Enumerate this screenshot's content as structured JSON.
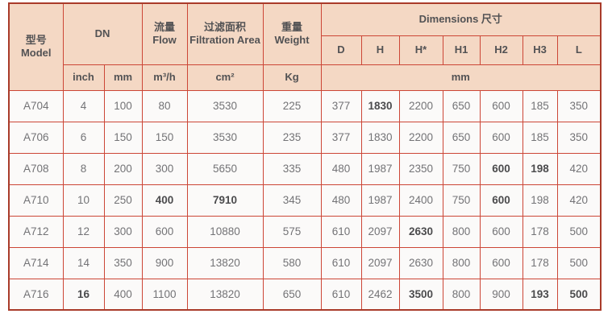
{
  "accent_colors": {
    "header_fill": "#f4d8c4",
    "grid_line": "#cc4636",
    "outer_border": "#a93b2a",
    "data_text": "#737376",
    "header_text": "#525254"
  },
  "table": {
    "header": {
      "model_zh": "型号",
      "model_en": "Model",
      "dn": "DN",
      "flow_zh": "流量",
      "flow_en": "Flow",
      "filtration_zh": "过滤面积",
      "filtration_en": "Filtration Area",
      "weight_zh": "重量",
      "weight_en": "Weight",
      "dimensions": "Dimensions 尺寸",
      "dim_cols": [
        "D",
        "H",
        "H*",
        "H1",
        "H2",
        "H3",
        "L"
      ],
      "unit_inch": "inch",
      "unit_mm": "mm",
      "unit_flow": "m³/h",
      "unit_area": "cm²",
      "unit_weight": "Kg",
      "unit_dims": "mm"
    },
    "rows": [
      [
        "A704",
        "4",
        "100",
        "80",
        "3530",
        "225",
        "377",
        "1830",
        "2200",
        "650",
        "600",
        "185",
        "350"
      ],
      [
        "A706",
        "6",
        "150",
        "150",
        "3530",
        "235",
        "377",
        "1830",
        "2200",
        "650",
        "600",
        "185",
        "350"
      ],
      [
        "A708",
        "8",
        "200",
        "300",
        "5650",
        "335",
        "480",
        "1987",
        "2350",
        "750",
        "600",
        "198",
        "420"
      ],
      [
        "A710",
        "10",
        "250",
        "400",
        "7910",
        "345",
        "480",
        "1987",
        "2400",
        "750",
        "600",
        "198",
        "420"
      ],
      [
        "A712",
        "12",
        "300",
        "600",
        "10880",
        "575",
        "610",
        "2097",
        "2630",
        "800",
        "600",
        "178",
        "500"
      ],
      [
        "A714",
        "14",
        "350",
        "900",
        "13820",
        "580",
        "610",
        "2097",
        "2630",
        "800",
        "600",
        "178",
        "500"
      ],
      [
        "A716",
        "16",
        "400",
        "1100",
        "13820",
        "650",
        "610",
        "2462",
        "3500",
        "800",
        "900",
        "193",
        "500"
      ]
    ],
    "bold_cells": [
      [
        0,
        7
      ],
      [
        2,
        10
      ],
      [
        2,
        11
      ],
      [
        3,
        3
      ],
      [
        3,
        4
      ],
      [
        3,
        10
      ],
      [
        4,
        8
      ],
      [
        6,
        1
      ],
      [
        6,
        8
      ],
      [
        6,
        11
      ],
      [
        6,
        12
      ]
    ]
  }
}
